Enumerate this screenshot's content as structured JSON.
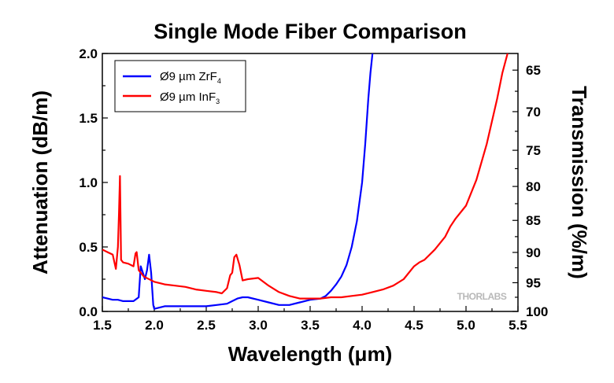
{
  "chart_data": {
    "type": "line",
    "title": "Single Mode Fiber Comparison",
    "xlabel": "Wavelength (μm)",
    "ylabel": "Attenuation (dB/m)",
    "y2label": "Transmission (%/m)",
    "xlim": [
      1.5,
      5.5
    ],
    "ylim": [
      0,
      2.0
    ],
    "x_ticks": [
      "1.5",
      "2.0",
      "2.5",
      "3.0",
      "3.5",
      "4.0",
      "4.5",
      "5.0",
      "5.5"
    ],
    "y_ticks": [
      "0.0",
      "0.5",
      "1.0",
      "1.5",
      "2.0"
    ],
    "y2_ticks": [
      "65",
      "70",
      "75",
      "80",
      "85",
      "90",
      "95",
      "100"
    ],
    "legend_position": "top-left",
    "grid": false,
    "series": [
      {
        "name": "Ø9 µm ZrF",
        "name_sub": "4",
        "color": "#0000ff",
        "x": [
          1.5,
          1.55,
          1.6,
          1.65,
          1.7,
          1.75,
          1.8,
          1.85,
          1.87,
          1.89,
          1.91,
          1.93,
          1.95,
          1.97,
          1.99,
          2.0,
          2.05,
          2.1,
          2.2,
          2.3,
          2.4,
          2.5,
          2.6,
          2.7,
          2.75,
          2.8,
          2.85,
          2.9,
          3.0,
          3.1,
          3.2,
          3.3,
          3.4,
          3.5,
          3.6,
          3.65,
          3.7,
          3.75,
          3.8,
          3.85,
          3.9,
          3.95,
          4.0,
          4.03,
          4.06,
          4.08,
          4.1
        ],
        "y": [
          0.11,
          0.1,
          0.09,
          0.09,
          0.08,
          0.08,
          0.08,
          0.11,
          0.35,
          0.3,
          0.25,
          0.32,
          0.44,
          0.3,
          0.05,
          0.02,
          0.03,
          0.04,
          0.04,
          0.04,
          0.04,
          0.04,
          0.05,
          0.06,
          0.08,
          0.1,
          0.11,
          0.11,
          0.09,
          0.07,
          0.05,
          0.05,
          0.07,
          0.09,
          0.1,
          0.12,
          0.16,
          0.21,
          0.27,
          0.36,
          0.5,
          0.7,
          1.0,
          1.3,
          1.65,
          1.85,
          2.0
        ]
      },
      {
        "name": "Ø9 µm InF",
        "name_sub": "3",
        "color": "#ff0000",
        "x": [
          1.5,
          1.55,
          1.6,
          1.63,
          1.65,
          1.66,
          1.67,
          1.68,
          1.7,
          1.75,
          1.8,
          1.82,
          1.83,
          1.85,
          1.9,
          2.0,
          2.1,
          2.2,
          2.3,
          2.4,
          2.5,
          2.6,
          2.65,
          2.7,
          2.73,
          2.75,
          2.77,
          2.79,
          2.82,
          2.85,
          2.9,
          3.0,
          3.1,
          3.2,
          3.3,
          3.4,
          3.5,
          3.6,
          3.7,
          3.8,
          3.9,
          4.0,
          4.1,
          4.2,
          4.3,
          4.4,
          4.5,
          4.55,
          4.6,
          4.7,
          4.8,
          4.85,
          4.9,
          5.0,
          5.1,
          5.2,
          5.3,
          5.35,
          5.4
        ],
        "y": [
          0.48,
          0.46,
          0.44,
          0.33,
          0.5,
          0.75,
          1.05,
          0.4,
          0.38,
          0.37,
          0.35,
          0.45,
          0.46,
          0.32,
          0.27,
          0.23,
          0.21,
          0.2,
          0.19,
          0.17,
          0.16,
          0.15,
          0.14,
          0.18,
          0.28,
          0.3,
          0.42,
          0.44,
          0.36,
          0.24,
          0.25,
          0.26,
          0.2,
          0.15,
          0.12,
          0.1,
          0.1,
          0.1,
          0.11,
          0.11,
          0.12,
          0.13,
          0.15,
          0.17,
          0.2,
          0.25,
          0.35,
          0.38,
          0.4,
          0.48,
          0.58,
          0.66,
          0.72,
          0.82,
          1.02,
          1.3,
          1.65,
          1.85,
          2.0
        ]
      }
    ]
  },
  "watermark": "THORLABS"
}
